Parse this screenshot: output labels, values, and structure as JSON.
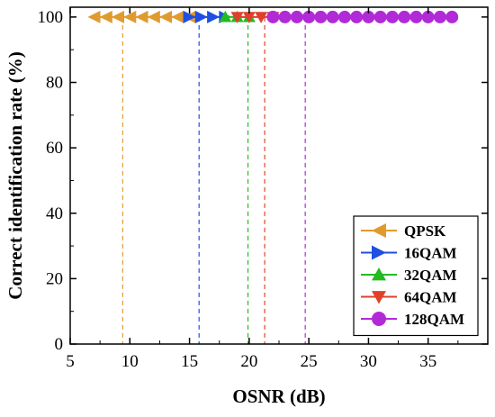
{
  "chart_data": {
    "type": "scatter",
    "xlabel": "OSNR (dB)",
    "ylabel": "Correct identification rate (%)",
    "xlim": [
      5,
      40
    ],
    "ylim": [
      0,
      103
    ],
    "xticks": [
      5,
      10,
      15,
      20,
      25,
      30,
      35
    ],
    "yticks": [
      0,
      20,
      40,
      60,
      80,
      100
    ],
    "grid": false,
    "legend_position": "bottom-right",
    "series": [
      {
        "name": "QPSK",
        "color": "#e09a2e",
        "marker": "triangle-left",
        "x": [
          7,
          8,
          9,
          10,
          11,
          12,
          13,
          14,
          15
        ],
        "y": [
          100,
          100,
          100,
          100,
          100,
          100,
          100,
          100,
          100
        ],
        "threshold": 9.4
      },
      {
        "name": "16QAM",
        "color": "#1f4fe0",
        "marker": "triangle-right",
        "x": [
          15,
          16,
          17,
          18
        ],
        "y": [
          100,
          100,
          100,
          100
        ],
        "threshold": 15.8
      },
      {
        "name": "32QAM",
        "color": "#22bb22",
        "marker": "triangle-up",
        "x": [
          18,
          19,
          20
        ],
        "y": [
          100,
          100,
          100
        ],
        "threshold": 19.9
      },
      {
        "name": "64QAM",
        "color": "#e0402a",
        "marker": "triangle-down",
        "x": [
          19,
          20,
          21,
          22
        ],
        "y": [
          100,
          100,
          100,
          100
        ],
        "threshold": 21.3
      },
      {
        "name": "128QAM",
        "color": "#b22ad8",
        "marker": "circle",
        "x": [
          22,
          23,
          24,
          25,
          26,
          27,
          28,
          29,
          30,
          31,
          32,
          33,
          34,
          35,
          36,
          37
        ],
        "y": [
          100,
          100,
          100,
          100,
          100,
          100,
          100,
          100,
          100,
          100,
          100,
          100,
          100,
          100,
          100,
          100
        ],
        "threshold": 24.7
      }
    ]
  }
}
